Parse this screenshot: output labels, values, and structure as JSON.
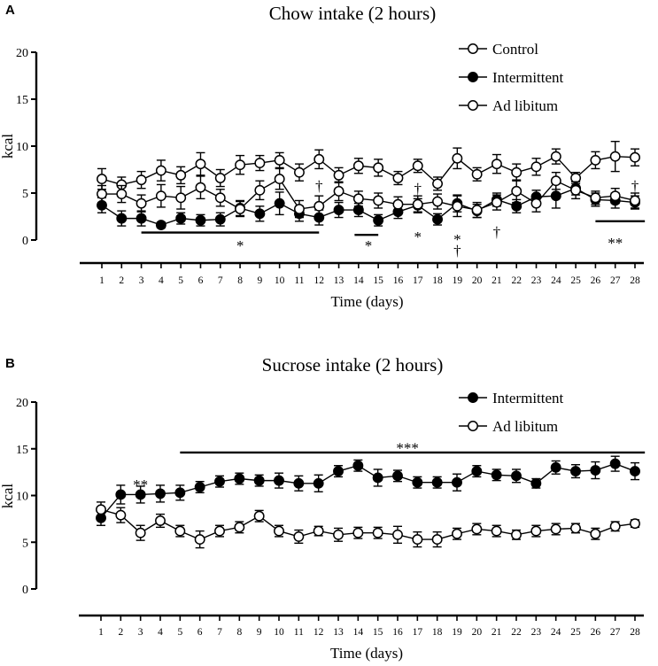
{
  "figure": {
    "panels": [
      "A",
      "B"
    ]
  },
  "chart_data": [
    {
      "panel_label": "A",
      "type": "line",
      "title": "Chow intake (2 hours)",
      "xlabel": "Time (days)",
      "ylabel": "kcal",
      "ylim": [
        0,
        20
      ],
      "yticks": [
        "0",
        "5",
        "10",
        "15",
        "20"
      ],
      "x": [
        1,
        2,
        3,
        4,
        5,
        6,
        7,
        8,
        9,
        10,
        11,
        12,
        13,
        14,
        15,
        16,
        17,
        18,
        19,
        20,
        21,
        22,
        23,
        24,
        25,
        26,
        27,
        28
      ],
      "xtick_labels": [
        "1",
        "2",
        "3",
        "4",
        "5",
        "6",
        "7",
        "8",
        "9",
        "10",
        "11",
        "12",
        "13",
        "14",
        "15",
        "16",
        "17",
        "18",
        "19",
        "20",
        "21",
        "22",
        "23",
        "24",
        "25",
        "26",
        "27",
        "28"
      ],
      "legend_position": "top-right",
      "series": [
        {
          "name": "Control",
          "marker": "open",
          "values": [
            6.5,
            5.9,
            6.4,
            7.4,
            6.9,
            8.1,
            6.6,
            8.0,
            8.2,
            8.5,
            7.2,
            8.6,
            6.9,
            7.9,
            7.7,
            6.6,
            7.9,
            6.0,
            8.7,
            7.0,
            8.1,
            7.2,
            7.8,
            8.9,
            6.6,
            8.5,
            8.9,
            8.8
          ],
          "errors": [
            1.1,
            0.8,
            0.9,
            1.1,
            0.9,
            1.2,
            0.9,
            1.0,
            0.8,
            0.8,
            0.9,
            1.0,
            0.8,
            0.8,
            0.9,
            0.7,
            0.7,
            0.7,
            1.1,
            0.7,
            1.0,
            0.9,
            0.9,
            0.8,
            0.6,
            0.9,
            1.6,
            0.9
          ]
        },
        {
          "name": "Intermittent",
          "marker": "filled",
          "values": [
            3.7,
            2.3,
            2.3,
            1.6,
            2.3,
            2.1,
            2.2,
            3.4,
            2.8,
            3.9,
            2.8,
            2.4,
            3.2,
            3.2,
            2.1,
            3.0,
            3.7,
            2.2,
            3.9,
            3.1,
            4.3,
            3.6,
            4.6,
            4.7,
            5.5,
            4.3,
            4.2,
            4.0
          ],
          "errors": [
            0.8,
            0.8,
            0.8,
            0.3,
            0.6,
            0.6,
            0.7,
            0.8,
            0.8,
            1.2,
            0.8,
            0.8,
            0.8,
            0.7,
            0.6,
            0.7,
            0.7,
            0.6,
            0.9,
            0.7,
            0.7,
            0.7,
            0.7,
            1.3,
            0.7,
            0.7,
            0.8,
            0.7
          ]
        },
        {
          "name": "Ad libitum",
          "marker": "open",
          "values": [
            4.9,
            4.9,
            3.9,
            4.7,
            4.5,
            5.6,
            4.5,
            3.3,
            5.3,
            6.5,
            3.3,
            3.6,
            5.2,
            4.4,
            4.2,
            3.8,
            3.8,
            4.1,
            3.6,
            3.2,
            4.0,
            5.2,
            3.9,
            6.3,
            5.3,
            4.5,
            4.7,
            4.2
          ],
          "errors": [
            0.9,
            0.9,
            0.9,
            1.2,
            1.2,
            1.2,
            0.9,
            0.8,
            1.0,
            1.1,
            0.9,
            1.1,
            1.0,
            0.8,
            0.8,
            0.8,
            0.9,
            0.8,
            1.1,
            0.8,
            0.8,
            1.2,
            0.9,
            0.9,
            0.9,
            0.7,
            0.8,
            0.8
          ]
        }
      ],
      "annotations": [
        {
          "text": "*",
          "x": 8,
          "y": -0.55
        },
        {
          "text": "*",
          "x": 14.5,
          "y": -0.55
        },
        {
          "text": "*",
          "x": 17,
          "y": 0.4
        },
        {
          "text": "*",
          "x": 19,
          "y": 0.1
        },
        {
          "text": "†",
          "x": 19,
          "y": -1.1
        },
        {
          "text": "†",
          "x": 21,
          "y": 0.9
        },
        {
          "text": "†",
          "x": 12,
          "y": 5.8
        },
        {
          "text": "†",
          "x": 17,
          "y": 5.5
        },
        {
          "text": "†",
          "x": 28,
          "y": 5.8
        },
        {
          "text": "**",
          "x": 27,
          "y": -0.3
        }
      ],
      "significance_bars": [
        {
          "x_start": 3,
          "x_end": 12,
          "y": 0.8
        },
        {
          "x_start": 13.8,
          "x_end": 15,
          "y": 0.55
        },
        {
          "x_start": 26,
          "x_end": 28.5,
          "y": 2.0
        }
      ]
    },
    {
      "panel_label": "B",
      "type": "line",
      "title": "Sucrose intake (2 hours)",
      "xlabel": "Time (days)",
      "ylabel": "kcal",
      "ylim": [
        0,
        20
      ],
      "yticks": [
        "0",
        "5",
        "10",
        "15",
        "20"
      ],
      "x": [
        1,
        2,
        3,
        4,
        5,
        6,
        7,
        8,
        9,
        10,
        11,
        12,
        13,
        14,
        15,
        16,
        17,
        18,
        19,
        20,
        21,
        22,
        23,
        24,
        25,
        26,
        27,
        28
      ],
      "xtick_labels": [
        "1",
        "2",
        "3",
        "4",
        "5",
        "6",
        "7",
        "8",
        "9",
        "10",
        "11",
        "12",
        "13",
        "14",
        "15",
        "16",
        "17",
        "18",
        "19",
        "20",
        "21",
        "22",
        "23",
        "24",
        "25",
        "26",
        "27",
        "28"
      ],
      "legend_position": "top-right",
      "series": [
        {
          "name": "Intermittent",
          "marker": "filled",
          "values": [
            7.6,
            10.1,
            10.1,
            10.2,
            10.3,
            10.9,
            11.5,
            11.8,
            11.6,
            11.6,
            11.3,
            11.3,
            12.6,
            13.2,
            11.9,
            12.1,
            11.4,
            11.4,
            11.4,
            12.6,
            12.2,
            12.1,
            11.3,
            13.0,
            12.6,
            12.7,
            13.4,
            12.6
          ],
          "errors": [
            0.8,
            1.0,
            0.9,
            0.9,
            0.8,
            0.6,
            0.6,
            0.6,
            0.6,
            0.8,
            0.8,
            0.9,
            0.6,
            0.6,
            0.9,
            0.6,
            0.6,
            0.6,
            0.9,
            0.6,
            0.6,
            0.7,
            0.5,
            0.7,
            0.7,
            0.9,
            0.8,
            0.9
          ]
        },
        {
          "name": "Ad libitum",
          "marker": "open",
          "values": [
            8.5,
            7.9,
            6.0,
            7.3,
            6.2,
            5.3,
            6.2,
            6.6,
            7.8,
            6.2,
            5.6,
            6.2,
            5.8,
            6.0,
            6.0,
            5.8,
            5.3,
            5.3,
            5.9,
            6.4,
            6.2,
            5.8,
            6.2,
            6.4,
            6.5,
            5.9,
            6.7,
            7.0
          ],
          "errors": [
            0.8,
            0.8,
            0.8,
            0.7,
            0.6,
            0.9,
            0.6,
            0.6,
            0.6,
            0.6,
            0.7,
            0.5,
            0.7,
            0.6,
            0.6,
            0.9,
            0.8,
            0.8,
            0.6,
            0.6,
            0.6,
            0.5,
            0.6,
            0.6,
            0.5,
            0.6,
            0.5,
            0.4
          ]
        }
      ],
      "annotations": [
        {
          "text": "**",
          "x": 3,
          "y": 11.2
        },
        {
          "text": "***",
          "x": 16.5,
          "y": 15.1
        }
      ],
      "significance_bars": [
        {
          "x_start": 5,
          "x_end": 28.5,
          "y": 14.6
        }
      ]
    }
  ]
}
